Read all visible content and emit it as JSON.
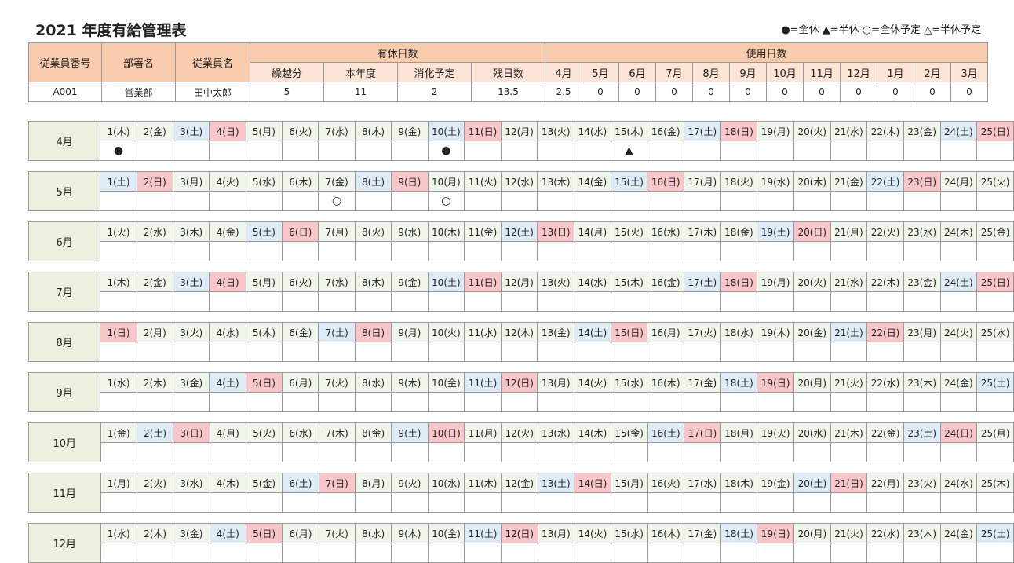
{
  "title": "2021 年度有給管理表",
  "legend": "●=全休 ▲=半休 ○=全休予定 △=半休予定",
  "colors": {
    "header": "#f8cbad",
    "subheader": "#fce4d6",
    "month_label": "#ebf1de",
    "weekday": "#eef5ea",
    "saturday": "#ddebf7",
    "sunday": "#f8c6c9"
  },
  "summary": {
    "headers": {
      "employee_no": "従業員番号",
      "department": "部署名",
      "employee_name": "従業員名",
      "paid_leave_days": "有休日数",
      "used_days": "使用日数"
    },
    "leave_subheaders": [
      "繰越分",
      "本年度",
      "消化予定",
      "残日数"
    ],
    "month_subheaders": [
      "4月",
      "5月",
      "6月",
      "7月",
      "8月",
      "9月",
      "10月",
      "11月",
      "12月",
      "1月",
      "2月",
      "3月"
    ],
    "row": {
      "employee_no": "A001",
      "department": "営業部",
      "employee_name": "田中太郎",
      "leave_values": [
        "5",
        "11",
        "2",
        "13.5"
      ],
      "month_values": [
        "2.5",
        "0",
        "0",
        "0",
        "0",
        "0",
        "0",
        "0",
        "0",
        "0",
        "0",
        "0"
      ]
    }
  },
  "calendar": [
    {
      "month": "4月",
      "days": [
        "1(木)",
        "2(金)",
        "3(土)",
        "4(日)",
        "5(月)",
        "6(火)",
        "7(水)",
        "8(木)",
        "9(金)",
        "10(土)",
        "11(日)",
        "12(月)",
        "13(火)",
        "14(水)",
        "15(木)",
        "16(金)",
        "17(土)",
        "18(日)",
        "19(月)",
        "20(火)",
        "21(水)",
        "22(木)",
        "23(金)",
        "24(土)",
        "25(日)"
      ],
      "marks": [
        {
          "day": 1,
          "symbol": "●"
        },
        {
          "day": 10,
          "symbol": "●"
        },
        {
          "day": 15,
          "symbol": "▲"
        }
      ]
    },
    {
      "month": "5月",
      "days": [
        "1(土)",
        "2(日)",
        "3(月)",
        "4(火)",
        "5(水)",
        "6(木)",
        "7(金)",
        "8(土)",
        "9(日)",
        "10(月)",
        "11(火)",
        "12(水)",
        "13(木)",
        "14(金)",
        "15(土)",
        "16(日)",
        "17(月)",
        "18(火)",
        "19(水)",
        "20(木)",
        "21(金)",
        "22(土)",
        "23(日)",
        "24(月)",
        "25(火)"
      ],
      "marks": [
        {
          "day": 7,
          "symbol": "○"
        },
        {
          "day": 10,
          "symbol": "○"
        }
      ]
    },
    {
      "month": "6月",
      "days": [
        "1(火)",
        "2(水)",
        "3(木)",
        "4(金)",
        "5(土)",
        "6(日)",
        "7(月)",
        "8(火)",
        "9(水)",
        "10(木)",
        "11(金)",
        "12(土)",
        "13(日)",
        "14(月)",
        "15(火)",
        "16(水)",
        "17(木)",
        "18(金)",
        "19(土)",
        "20(日)",
        "21(月)",
        "22(火)",
        "23(水)",
        "24(木)",
        "25(金)"
      ],
      "marks": []
    },
    {
      "month": "7月",
      "days": [
        "1(木)",
        "2(金)",
        "3(土)",
        "4(日)",
        "5(月)",
        "6(火)",
        "7(水)",
        "8(木)",
        "9(金)",
        "10(土)",
        "11(日)",
        "12(月)",
        "13(火)",
        "14(水)",
        "15(木)",
        "16(金)",
        "17(土)",
        "18(日)",
        "19(月)",
        "20(火)",
        "21(水)",
        "22(木)",
        "23(金)",
        "24(土)",
        "25(日)"
      ],
      "marks": []
    },
    {
      "month": "8月",
      "days": [
        "1(日)",
        "2(月)",
        "3(火)",
        "4(水)",
        "5(木)",
        "6(金)",
        "7(土)",
        "8(日)",
        "9(月)",
        "10(火)",
        "11(水)",
        "12(木)",
        "13(金)",
        "14(土)",
        "15(日)",
        "16(月)",
        "17(火)",
        "18(水)",
        "19(木)",
        "20(金)",
        "21(土)",
        "22(日)",
        "23(月)",
        "24(火)",
        "25(水)"
      ],
      "marks": []
    },
    {
      "month": "9月",
      "days": [
        "1(水)",
        "2(木)",
        "3(金)",
        "4(土)",
        "5(日)",
        "6(月)",
        "7(火)",
        "8(水)",
        "9(木)",
        "10(金)",
        "11(土)",
        "12(日)",
        "13(月)",
        "14(火)",
        "15(水)",
        "16(木)",
        "17(金)",
        "18(土)",
        "19(日)",
        "20(月)",
        "21(火)",
        "22(水)",
        "23(木)",
        "24(金)",
        "25(土)"
      ],
      "marks": []
    },
    {
      "month": "10月",
      "days": [
        "1(金)",
        "2(土)",
        "3(日)",
        "4(月)",
        "5(火)",
        "6(水)",
        "7(木)",
        "8(金)",
        "9(土)",
        "10(日)",
        "11(月)",
        "12(火)",
        "13(水)",
        "14(木)",
        "15(金)",
        "16(土)",
        "17(日)",
        "18(月)",
        "19(火)",
        "20(水)",
        "21(木)",
        "22(金)",
        "23(土)",
        "24(日)",
        "25(月)"
      ],
      "marks": []
    },
    {
      "month": "11月",
      "days": [
        "1(月)",
        "2(火)",
        "3(水)",
        "4(木)",
        "5(金)",
        "6(土)",
        "7(日)",
        "8(月)",
        "9(火)",
        "10(水)",
        "11(木)",
        "12(金)",
        "13(土)",
        "14(日)",
        "15(月)",
        "16(火)",
        "17(水)",
        "18(木)",
        "19(金)",
        "20(土)",
        "21(日)",
        "22(月)",
        "23(火)",
        "24(水)",
        "25(木)"
      ],
      "marks": []
    },
    {
      "month": "12月",
      "days": [
        "1(水)",
        "2(木)",
        "3(金)",
        "4(土)",
        "5(日)",
        "6(月)",
        "7(火)",
        "8(水)",
        "9(木)",
        "10(金)",
        "11(土)",
        "12(日)",
        "13(月)",
        "14(火)",
        "15(水)",
        "16(木)",
        "17(金)",
        "18(土)",
        "19(日)",
        "20(月)",
        "21(火)",
        "22(水)",
        "23(木)",
        "24(金)",
        "25(土)"
      ],
      "marks": []
    }
  ]
}
